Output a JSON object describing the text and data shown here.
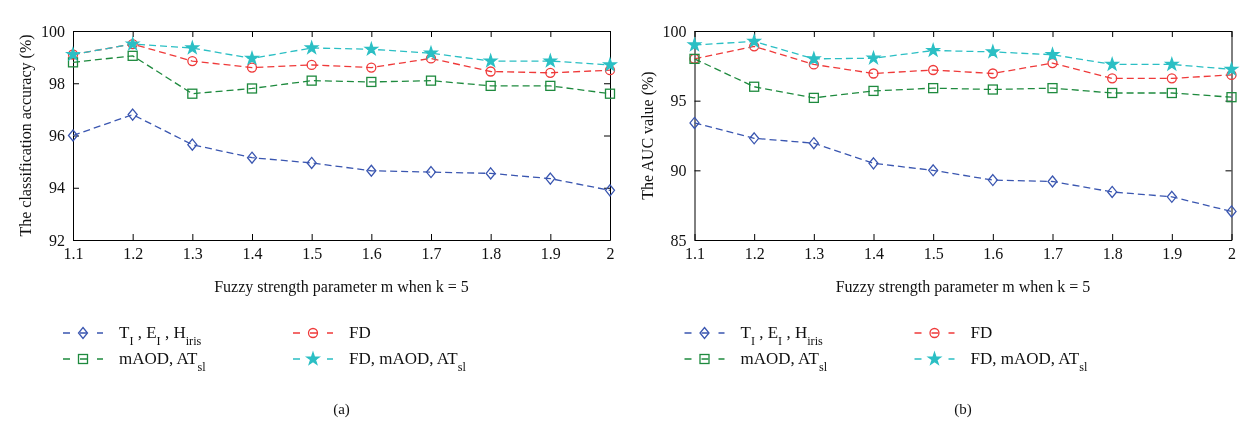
{
  "chart_data": [
    {
      "type": "line",
      "xlabel": "Fuzzy strength parameter m when k = 5",
      "ylabel": "The classification accuracy (%)",
      "x": [
        1.1,
        1.2,
        1.3,
        1.4,
        1.5,
        1.6,
        1.7,
        1.8,
        1.9,
        2
      ],
      "xlim": [
        1.1,
        2
      ],
      "xticks": [
        1.1,
        1.2,
        1.3,
        1.4,
        1.5,
        1.6,
        1.7,
        1.8,
        1.9,
        {
          "value": 2,
          "label": "2"
        }
      ],
      "ylim": [
        92,
        100
      ],
      "yticks": [
        92,
        94,
        96,
        98,
        100
      ],
      "grid": false,
      "legend": "bottom",
      "line_style": "dashed",
      "annotations": [
        "(a)"
      ],
      "series": [
        {
          "name": "T$_{I}$ , E$_{I}$ , H$_{iris}$",
          "color": "#3a56b0",
          "marker": "diamond",
          "values": [
            96.0,
            96.8,
            95.65,
            95.15,
            94.95,
            94.65,
            94.6,
            94.55,
            94.35,
            93.9
          ]
        },
        {
          "name": "FD",
          "color": "#ef3a3a",
          "marker": "circle",
          "values": [
            99.1,
            99.5,
            98.85,
            98.6,
            98.7,
            98.6,
            98.95,
            98.45,
            98.4,
            98.5
          ]
        },
        {
          "name": "mAOD, AT$_{sl}$",
          "color": "#1e8a3e",
          "marker": "square",
          "values": [
            98.8,
            99.05,
            97.6,
            97.8,
            98.1,
            98.05,
            98.1,
            97.9,
            97.9,
            97.6
          ]
        },
        {
          "name": "FD, mAOD, AT$_{sl}$",
          "color": "#2bbfc4",
          "marker": "star",
          "values": [
            99.1,
            99.5,
            99.35,
            98.95,
            99.35,
            99.3,
            99.15,
            98.85,
            98.85,
            98.7
          ]
        }
      ]
    },
    {
      "type": "line",
      "xlabel": "Fuzzy strength parameter m when k = 5",
      "ylabel": "The AUC value (%)",
      "x": [
        1.1,
        1.2,
        1.3,
        1.4,
        1.5,
        1.6,
        1.7,
        1.8,
        1.9,
        2
      ],
      "xlim": [
        1.1,
        2
      ],
      "xticks": [
        1.1,
        1.2,
        1.3,
        1.4,
        1.5,
        1.6,
        1.7,
        1.8,
        1.9,
        {
          "value": 2,
          "label": "2"
        }
      ],
      "ylim": [
        85,
        100
      ],
      "yticks": [
        85,
        90,
        95,
        100
      ],
      "grid": false,
      "legend": "bottom",
      "line_style": "dashed",
      "annotations": [
        "(b)"
      ],
      "series": [
        {
          "name": "T$_{I}$ , E$_{I}$ , H$_{iris}$",
          "color": "#3a56b0",
          "marker": "diamond",
          "values": [
            93.4,
            92.3,
            91.95,
            90.5,
            90.0,
            89.3,
            89.2,
            88.45,
            88.1,
            87.05
          ]
        },
        {
          "name": "FD",
          "color": "#ef3a3a",
          "marker": "circle",
          "values": [
            98.0,
            98.9,
            97.6,
            96.95,
            97.2,
            96.95,
            97.7,
            96.6,
            96.6,
            96.85
          ]
        },
        {
          "name": "mAOD, AT$_{sl}$",
          "color": "#1e8a3e",
          "marker": "square",
          "values": [
            98.0,
            96.0,
            95.2,
            95.7,
            95.9,
            95.8,
            95.9,
            95.55,
            95.55,
            95.25
          ]
        },
        {
          "name": "FD, mAOD, AT$_{sl}$",
          "color": "#2bbfc4",
          "marker": "star",
          "values": [
            99.0,
            99.25,
            98.0,
            98.05,
            98.6,
            98.5,
            98.3,
            97.6,
            97.6,
            97.25
          ]
        }
      ]
    }
  ]
}
